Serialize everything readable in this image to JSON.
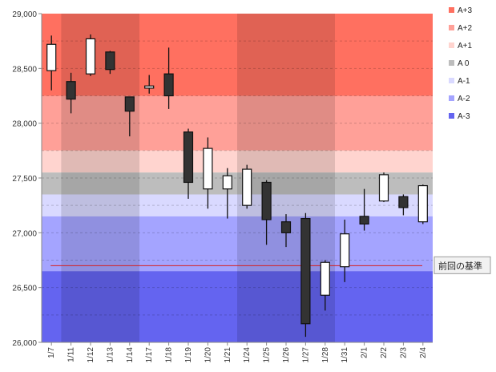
{
  "chart_data": {
    "type": "candlestick",
    "title": "",
    "xlabel": "",
    "ylabel": "",
    "ylim": [
      26000,
      29000
    ],
    "y_ticks": [
      26000,
      26500,
      27000,
      27500,
      28000,
      28500,
      29000
    ],
    "y_tick_labels": [
      "26,000",
      "26,500",
      "27,000",
      "27,500",
      "28,000",
      "28,500",
      "29,000"
    ],
    "categories": [
      "1/7",
      "1/11",
      "1/12",
      "1/13",
      "1/14",
      "1/17",
      "1/18",
      "1/19",
      "1/20",
      "1/21",
      "1/24",
      "1/25",
      "1/26",
      "1/27",
      "1/28",
      "1/31",
      "2/1",
      "2/2",
      "2/3",
      "2/4"
    ],
    "candles": [
      {
        "open": 28480,
        "high": 28800,
        "low": 28300,
        "close": 28720
      },
      {
        "open": 28380,
        "high": 28460,
        "low": 28090,
        "close": 28220
      },
      {
        "open": 28450,
        "high": 28810,
        "low": 28430,
        "close": 28770
      },
      {
        "open": 28650,
        "high": 28660,
        "low": 28450,
        "close": 28490
      },
      {
        "open": 28240,
        "high": 28240,
        "low": 27880,
        "close": 28110
      },
      {
        "open": 28320,
        "high": 28440,
        "low": 28270,
        "close": 28340
      },
      {
        "open": 28450,
        "high": 28690,
        "low": 28130,
        "close": 28250
      },
      {
        "open": 27920,
        "high": 27950,
        "low": 27310,
        "close": 27460
      },
      {
        "open": 27400,
        "high": 27870,
        "low": 27220,
        "close": 27770
      },
      {
        "open": 27400,
        "high": 27590,
        "low": 27130,
        "close": 27520
      },
      {
        "open": 27250,
        "high": 27620,
        "low": 27220,
        "close": 27580
      },
      {
        "open": 27460,
        "high": 27480,
        "low": 26890,
        "close": 27120
      },
      {
        "open": 27100,
        "high": 27170,
        "low": 26870,
        "close": 27000
      },
      {
        "open": 27130,
        "high": 27180,
        "low": 26050,
        "close": 26170
      },
      {
        "open": 26430,
        "high": 26750,
        "low": 26290,
        "close": 26730
      },
      {
        "open": 26690,
        "high": 27120,
        "low": 26550,
        "close": 26990
      },
      {
        "open": 27150,
        "high": 27400,
        "low": 27020,
        "close": 27080
      },
      {
        "open": 27290,
        "high": 27550,
        "low": 27280,
        "close": 27530
      },
      {
        "open": 27330,
        "high": 27350,
        "low": 27160,
        "close": 27230
      },
      {
        "open": 27100,
        "high": 27440,
        "low": 27080,
        "close": 27430
      }
    ],
    "bands": [
      {
        "name": "A+3",
        "from": 28250,
        "to": 29000,
        "color": "#ff7060"
      },
      {
        "name": "A+2",
        "from": 27750,
        "to": 28250,
        "color": "#ffa098"
      },
      {
        "name": "A+1",
        "from": 27550,
        "to": 27750,
        "color": "#ffd4cf"
      },
      {
        "name": "A 0",
        "from": 27350,
        "to": 27550,
        "color": "#bdbdbd"
      },
      {
        "name": "A-1",
        "from": 27150,
        "to": 27350,
        "color": "#d9d9ff"
      },
      {
        "name": "A-2",
        "from": 26650,
        "to": 27150,
        "color": "#a4a4ff"
      },
      {
        "name": "A-3",
        "from": 26000,
        "to": 26650,
        "color": "#6464f0"
      }
    ],
    "shaded_periods": [
      [
        1,
        4
      ],
      [
        10,
        14
      ]
    ],
    "gridlines_y": [
      26250,
      26500,
      26750,
      27000,
      27250,
      27500,
      27750,
      28000,
      28250,
      28500,
      28750
    ],
    "reference_line": {
      "label": "前回の基準",
      "value": 26700,
      "color": "#d42020"
    },
    "legend": {
      "position": "right",
      "items": [
        {
          "label": "A+3",
          "color": "#ff7060"
        },
        {
          "label": "A+2",
          "color": "#ffa098"
        },
        {
          "label": "A+1",
          "color": "#ffd4cf"
        },
        {
          "label": "A 0",
          "color": "#bdbdbd"
        },
        {
          "label": "A-1",
          "color": "#d9d9ff"
        },
        {
          "label": "A-2",
          "color": "#a4a4ff"
        },
        {
          "label": "A-3",
          "color": "#6464f0"
        }
      ]
    },
    "colors": {
      "up_body": "#ffffff",
      "down_body": "#333333",
      "outline": "#111111"
    }
  }
}
